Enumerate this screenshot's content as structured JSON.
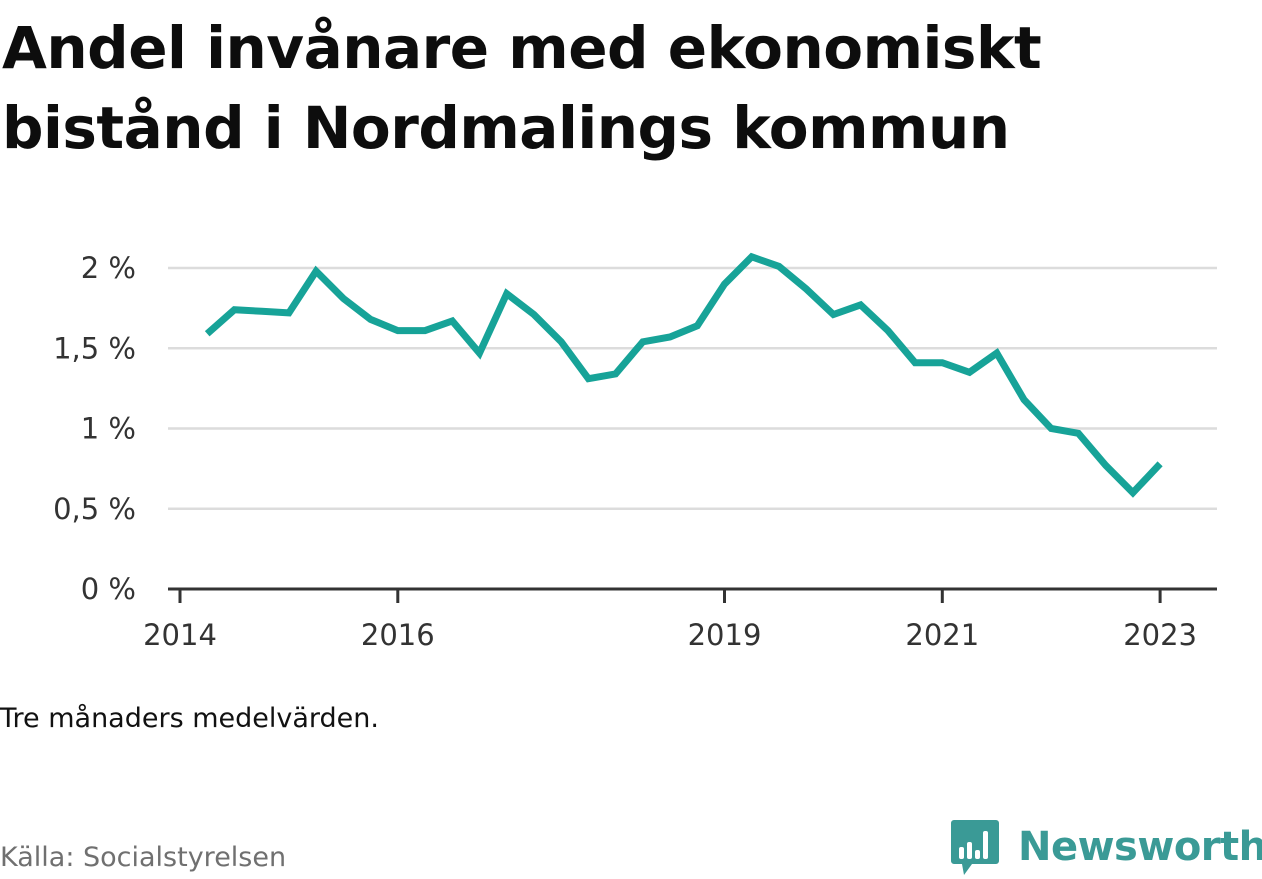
{
  "chart_data": {
    "type": "line",
    "title": "Andel invånare med ekonomiskt bistånd i Nordmalings kommun",
    "xlabel": "",
    "ylabel": "",
    "ylim": [
      0,
      2.2
    ],
    "grid": true,
    "y_ticks": [
      {
        "value": 0,
        "label": "0 %"
      },
      {
        "value": 0.5,
        "label": "0,5 %"
      },
      {
        "value": 1,
        "label": "1 %"
      },
      {
        "value": 1.5,
        "label": "1,5 %"
      },
      {
        "value": 2,
        "label": "2 %"
      }
    ],
    "x_ticks": [
      {
        "value": 2014,
        "label": "2014"
      },
      {
        "value": 2016,
        "label": "2016"
      },
      {
        "value": 2019,
        "label": "2019"
      },
      {
        "value": 2021,
        "label": "2021"
      },
      {
        "value": 2023,
        "label": "2023"
      }
    ],
    "series": [
      {
        "color": "#17a398",
        "x": [
          "2014-04",
          "2014-07",
          "2014-10",
          "2015-01",
          "2015-04",
          "2015-07",
          "2015-10",
          "2016-01",
          "2016-04",
          "2016-07",
          "2016-10",
          "2017-01",
          "2017-04",
          "2017-07",
          "2017-10",
          "2018-01",
          "2018-04",
          "2018-07",
          "2018-10",
          "2019-01",
          "2019-04",
          "2019-07",
          "2019-10",
          "2020-01",
          "2020-04",
          "2020-07",
          "2020-10",
          "2021-01",
          "2021-04",
          "2021-07",
          "2021-10",
          "2022-01",
          "2022-04",
          "2022-07",
          "2022-10",
          "2023-01"
        ],
        "values": [
          1.59,
          1.74,
          1.73,
          1.72,
          1.98,
          1.81,
          1.68,
          1.61,
          1.61,
          1.67,
          1.47,
          1.84,
          1.71,
          1.54,
          1.31,
          1.34,
          1.54,
          1.57,
          1.64,
          1.9,
          2.07,
          2.01,
          1.87,
          1.71,
          1.77,
          1.61,
          1.41,
          1.41,
          1.35,
          1.47,
          1.18,
          1.0,
          0.97,
          0.77,
          0.6,
          0.78
        ]
      }
    ]
  },
  "note": "Tre månaders medelvärden.",
  "source": "Källa: Socialstyrelsen",
  "brand": {
    "name": "Newsworthy",
    "color": "#3a9a96",
    "icon": "speech-bubble-bar-chart-icon"
  }
}
